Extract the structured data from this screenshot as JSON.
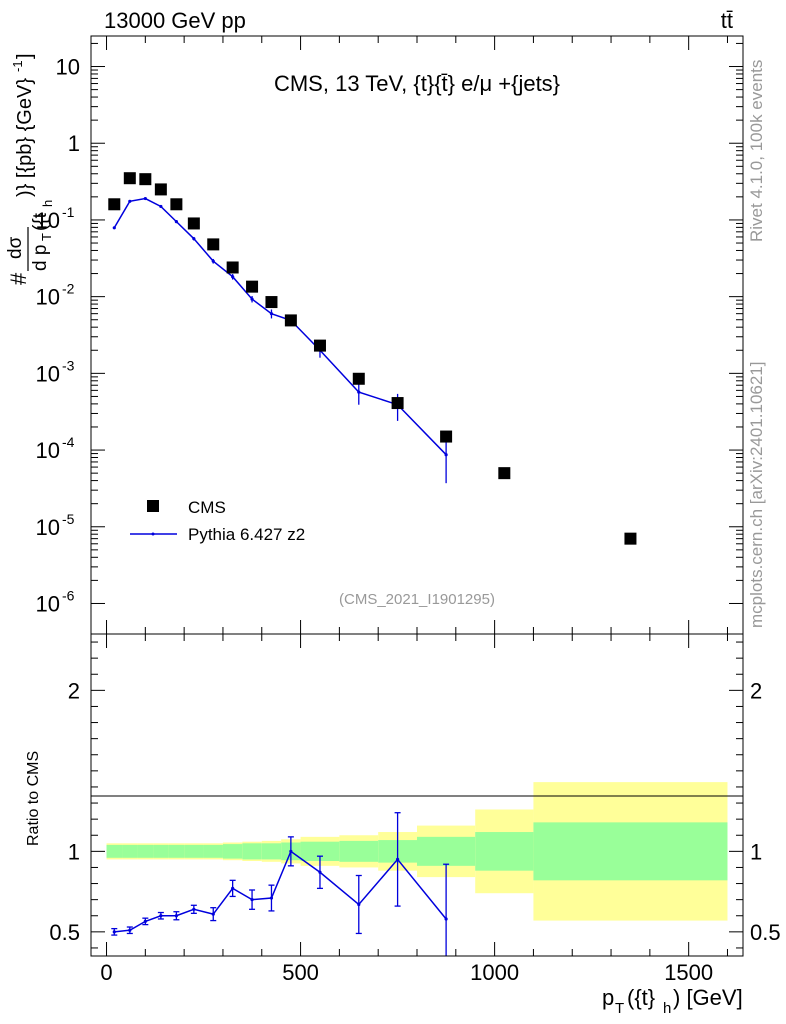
{
  "header": {
    "beam": "13000 GeV pp",
    "process": "tt̄"
  },
  "side": {
    "rivet": "Rivet 4.1.0,  100k events",
    "source": "mcplots.cern.ch [arXiv:2401.10621]"
  },
  "colors": {
    "data": "#000000",
    "mc": "#0000dd",
    "band_inner": "#99ff99",
    "band_outer": "#ffff99"
  },
  "chart_data": [
    {
      "type": "scatter",
      "title": "CMS, 13 TeV, {t}{t̄} e/μ +{jets}",
      "watermark": "(CMS_2021_I1901295)",
      "xlabel": "p_T({t}_h) [GeV]",
      "ylabel": "# dσ / d p_T({t}_h) [{pb} {GeV}^-1]",
      "yscale": "log",
      "xlim": [
        -40,
        1640
      ],
      "ylim": [
        4e-07,
        25
      ],
      "y_ticks": [
        {
          "exp": -6,
          "label": "10",
          "sup": "-6"
        },
        {
          "exp": -5,
          "label": "10",
          "sup": "-5"
        },
        {
          "exp": -4,
          "label": "10",
          "sup": "-4"
        },
        {
          "exp": -3,
          "label": "10",
          "sup": "-3"
        },
        {
          "exp": -2,
          "label": "10",
          "sup": "-2"
        },
        {
          "exp": -1,
          "label": "10",
          "sup": "-1"
        },
        {
          "exp": 0,
          "label": "1",
          "sup": ""
        },
        {
          "exp": 1,
          "label": "10",
          "sup": ""
        }
      ],
      "legend": {
        "position": "bottom-left",
        "data_label": "CMS",
        "mc_label": "Pythia 6.427 z2"
      },
      "series": [
        {
          "name": "CMS",
          "marker": "square",
          "x": [
            20,
            60,
            100,
            140,
            180,
            225,
            275,
            325,
            375,
            425,
            475,
            550,
            650,
            750,
            875,
            1025,
            1350
          ],
          "values": [
            0.16,
            0.35,
            0.34,
            0.25,
            0.16,
            0.09,
            0.048,
            0.024,
            0.0135,
            0.0085,
            0.0049,
            0.0023,
            0.00085,
            0.00041,
            0.00015,
            5e-05,
            7e-06
          ]
        },
        {
          "name": "Pythia 6.427 z2",
          "marker": "line",
          "x": [
            20,
            60,
            100,
            140,
            180,
            225,
            275,
            325,
            375,
            425,
            475,
            550,
            650,
            750,
            875
          ],
          "values": [
            0.079,
            0.175,
            0.19,
            0.15,
            0.095,
            0.057,
            0.029,
            0.0182,
            0.0093,
            0.006,
            0.0049,
            0.002,
            0.00057,
            0.00039,
            8.7e-05
          ],
          "err_low": [
            0.003,
            0.006,
            0.006,
            0.005,
            0.004,
            0.003,
            0.002,
            0.0015,
            0.0009,
            0.0008,
            0.0004,
            0.0004,
            0.00018,
            0.00015,
            5e-05
          ],
          "err_high": [
            0.003,
            0.006,
            0.006,
            0.005,
            0.004,
            0.003,
            0.002,
            0.0015,
            0.0009,
            0.0008,
            0.0004,
            0.0004,
            0.00018,
            0.00015,
            6e-05
          ]
        }
      ]
    },
    {
      "type": "line",
      "ylabel": "Ratio to CMS",
      "xlabel": "p_T({t}_h) [GeV]",
      "xlim": [
        -40,
        1640
      ],
      "ylim": [
        0.35,
        2.35
      ],
      "x_ticks": [
        0,
        500,
        1000,
        1500
      ],
      "x_tick_labels": [
        "0",
        "500",
        "1000",
        "1500"
      ],
      "y_ticks": [
        0.5,
        1,
        2
      ],
      "y_tick_labels": [
        "0.5",
        "1",
        "2"
      ],
      "bands": {
        "edges": [
          0,
          40,
          80,
          120,
          160,
          200,
          250,
          300,
          350,
          400,
          450,
          500,
          600,
          700,
          800,
          950,
          1100,
          1600
        ],
        "inner": [
          0.04,
          0.04,
          0.04,
          0.04,
          0.04,
          0.04,
          0.04,
          0.045,
          0.05,
          0.05,
          0.055,
          0.06,
          0.065,
          0.07,
          0.09,
          0.12,
          0.18
        ],
        "outer": [
          0.05,
          0.05,
          0.05,
          0.05,
          0.05,
          0.05,
          0.05,
          0.055,
          0.06,
          0.065,
          0.075,
          0.09,
          0.1,
          0.12,
          0.16,
          0.26,
          0.43
        ]
      },
      "series": [
        {
          "name": "Pythia 6.427 z2",
          "x": [
            20,
            60,
            100,
            140,
            180,
            225,
            275,
            325,
            375,
            425,
            475,
            550,
            650,
            750,
            875
          ],
          "values": [
            0.5,
            0.51,
            0.565,
            0.6,
            0.6,
            0.64,
            0.61,
            0.77,
            0.7,
            0.71,
            1.0,
            0.87,
            0.67,
            0.95,
            0.58
          ],
          "err": [
            0.02,
            0.02,
            0.02,
            0.02,
            0.025,
            0.025,
            0.04,
            0.05,
            0.06,
            0.08,
            0.09,
            0.1,
            0.18,
            0.29,
            0.34
          ]
        }
      ]
    }
  ]
}
